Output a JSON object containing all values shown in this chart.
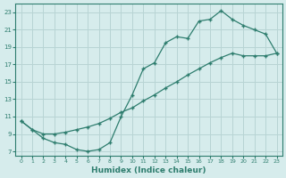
{
  "xlabel": "Humidex (Indice chaleur)",
  "bg_color": "#d6ecec",
  "grid_color": "#b8d4d4",
  "line_color": "#2e7d6e",
  "xlim": [
    -0.5,
    23.5
  ],
  "ylim": [
    6.5,
    24.0
  ],
  "xticks": [
    0,
    1,
    2,
    3,
    4,
    5,
    6,
    7,
    8,
    9,
    10,
    11,
    12,
    13,
    14,
    15,
    16,
    17,
    18,
    19,
    20,
    21,
    22,
    23
  ],
  "yticks": [
    7,
    9,
    11,
    13,
    15,
    17,
    19,
    21,
    23
  ],
  "line1_x": [
    0,
    1,
    2,
    3,
    4,
    5,
    6,
    7,
    8,
    9,
    10,
    11,
    12,
    13,
    14,
    15,
    16,
    17,
    18,
    19,
    20,
    21,
    22,
    23
  ],
  "line1_y": [
    10.5,
    9.5,
    8.5,
    8.0,
    7.8,
    7.2,
    7.0,
    7.2,
    8.0,
    11.0,
    13.5,
    16.5,
    17.2,
    19.5,
    20.2,
    20.0,
    22.0,
    22.2,
    23.2,
    22.2,
    21.5,
    21.0,
    20.5,
    18.3
  ],
  "line2_x": [
    0,
    1,
    2,
    3,
    4,
    5,
    6,
    7,
    8,
    9,
    10,
    11,
    12,
    13,
    14,
    15,
    16,
    17,
    18,
    19,
    20,
    21,
    22,
    23
  ],
  "line2_y": [
    10.5,
    9.5,
    9.0,
    9.0,
    9.2,
    9.5,
    9.8,
    10.2,
    10.8,
    11.5,
    12.0,
    12.8,
    13.5,
    14.3,
    15.0,
    15.8,
    16.5,
    17.2,
    17.8,
    18.3,
    18.0,
    18.0,
    18.0,
    18.3
  ]
}
